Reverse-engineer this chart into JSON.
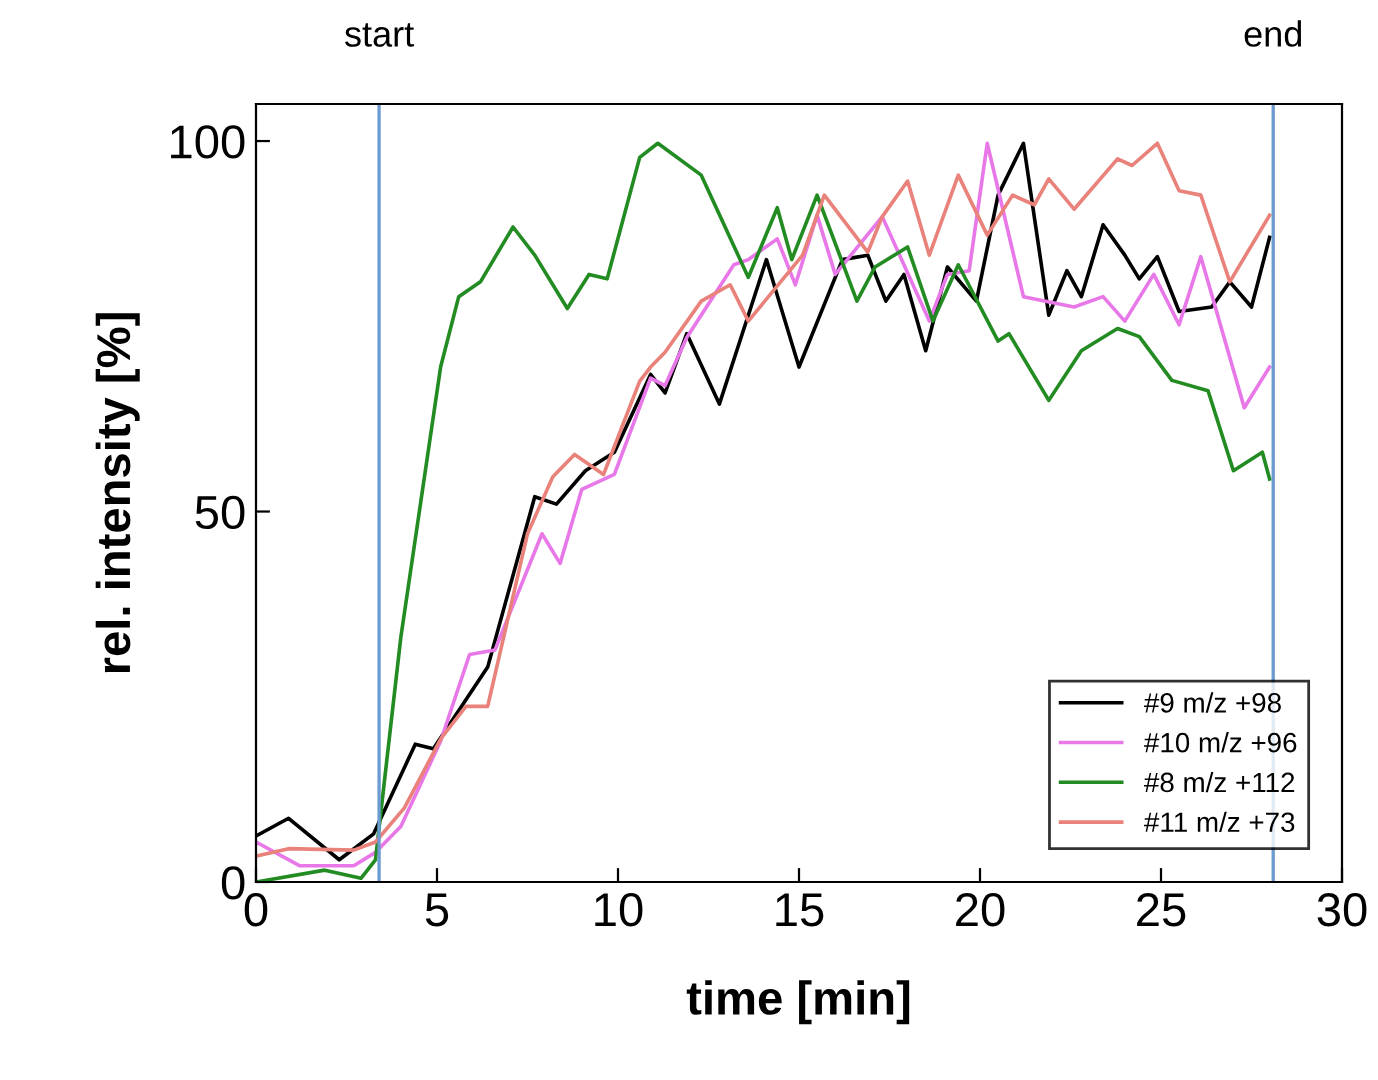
{
  "chart_data": {
    "type": "line",
    "xlabel": "time [min]",
    "ylabel": "rel. intensity [%]",
    "xlim": [
      0,
      30
    ],
    "ylim": [
      0,
      105
    ],
    "xticks": [
      0,
      5,
      10,
      15,
      20,
      25,
      30
    ],
    "yticks": [
      0,
      50,
      100
    ],
    "grid": false,
    "legend": "bottom right",
    "line_style": "solid",
    "marker": "none",
    "ref_lines": [
      {
        "axis": "x",
        "value": 3.4,
        "label": "start",
        "color": "#6b9bd1"
      },
      {
        "axis": "x",
        "value": 28.1,
        "label": "end",
        "color": "#6b9bd1"
      }
    ],
    "series": [
      {
        "name": "#9 m/z +98",
        "color": "#000000",
        "x": [
          0,
          0.9,
          2.3,
          3.25,
          4.4,
          4.9,
          6.4,
          7.7,
          8.3,
          9.1,
          9.9,
          10.9,
          11.3,
          11.9,
          12.8,
          14.1,
          15,
          16.2,
          16.9,
          17.4,
          17.9,
          18.5,
          19.1,
          19.9,
          20.5,
          21.2,
          21.9,
          22.4,
          22.8,
          23.4,
          24,
          24.4,
          24.9,
          25.5,
          26.4,
          26.9,
          27.5,
          28
        ],
        "values": [
          6.2,
          8.6,
          3,
          6.5,
          18.6,
          18,
          29,
          52,
          51,
          55.5,
          58,
          68.5,
          66,
          74,
          64.5,
          84,
          69.5,
          84,
          84.6,
          78.4,
          82,
          71.7,
          83,
          78.4,
          92.7,
          99.7,
          76.5,
          82.5,
          79,
          88.7,
          84.6,
          81.4,
          84.4,
          77,
          77.6,
          81,
          77.6,
          87
        ]
      },
      {
        "name": "#10 m/z +96",
        "color": "#e878e8",
        "x": [
          0,
          1.2,
          2.7,
          3.3,
          4,
          5.1,
          5.9,
          6.6,
          7.9,
          8.4,
          9,
          9.9,
          10.9,
          11.3,
          11.9,
          13.2,
          13.6,
          14.4,
          14.9,
          15.5,
          16,
          17.3,
          18.6,
          19.1,
          19.7,
          20.2,
          21.2,
          22.6,
          23.4,
          24,
          24.8,
          25.5,
          26.1,
          27.3,
          28
        ],
        "values": [
          5.4,
          2.2,
          2.2,
          4,
          7.5,
          19,
          30.7,
          31.3,
          47,
          43,
          53,
          55,
          68,
          67,
          73.5,
          83.3,
          84,
          86.8,
          80.6,
          90,
          82,
          89.8,
          75.7,
          82,
          82.5,
          99.7,
          79,
          77.6,
          79,
          75.7,
          82,
          75.2,
          84.4,
          64,
          69.5
        ]
      },
      {
        "name": "#8 m/z +112",
        "color": "#228b22",
        "x": [
          0,
          1.9,
          2.9,
          3.3,
          4,
          5.1,
          5.6,
          6.2,
          7.1,
          7.7,
          8.6,
          9.2,
          9.7,
          10.6,
          11.1,
          12.3,
          13.6,
          14.4,
          14.8,
          15.5,
          16.6,
          17.1,
          18,
          18.7,
          19.4,
          20.5,
          20.8,
          21.9,
          22.8,
          23.8,
          24.4,
          25.3,
          26.3,
          27,
          27.8,
          28
        ],
        "values": [
          0,
          1.6,
          0.5,
          3,
          33,
          69.5,
          79,
          81,
          88.4,
          84.6,
          77.4,
          82,
          81.4,
          97.8,
          99.7,
          95.4,
          81.6,
          91,
          84,
          92.7,
          78.4,
          83,
          85.7,
          75.7,
          83.3,
          73,
          74,
          65,
          71.7,
          74.7,
          73.6,
          67.7,
          66.3,
          55.5,
          58,
          54.4
        ]
      },
      {
        "name": "#11 m/z +73",
        "color": "#e8827a",
        "x": [
          0,
          0.9,
          2.7,
          3.3,
          4.1,
          5.1,
          5.8,
          6.4,
          7.5,
          8.2,
          8.8,
          9.6,
          10.6,
          10.9,
          11.3,
          12.3,
          13.1,
          13.6,
          15.1,
          15.7,
          16.9,
          17.3,
          18,
          18.6,
          19.4,
          20.2,
          20.9,
          21.5,
          21.9,
          22.6,
          23.8,
          24.2,
          24.9,
          25.5,
          26.1,
          26.9,
          28
        ],
        "values": [
          3.5,
          4.5,
          4.3,
          5.4,
          10,
          19.3,
          23.7,
          23.7,
          47,
          54.7,
          57.7,
          55,
          67.6,
          69.5,
          71.5,
          78.4,
          80.6,
          75.7,
          84.6,
          92.7,
          85,
          89.8,
          94.6,
          84.6,
          95.4,
          87.3,
          92.7,
          91.4,
          94.9,
          90.8,
          97.6,
          96.7,
          99.7,
          93.3,
          92.7,
          81,
          90
        ]
      }
    ]
  }
}
